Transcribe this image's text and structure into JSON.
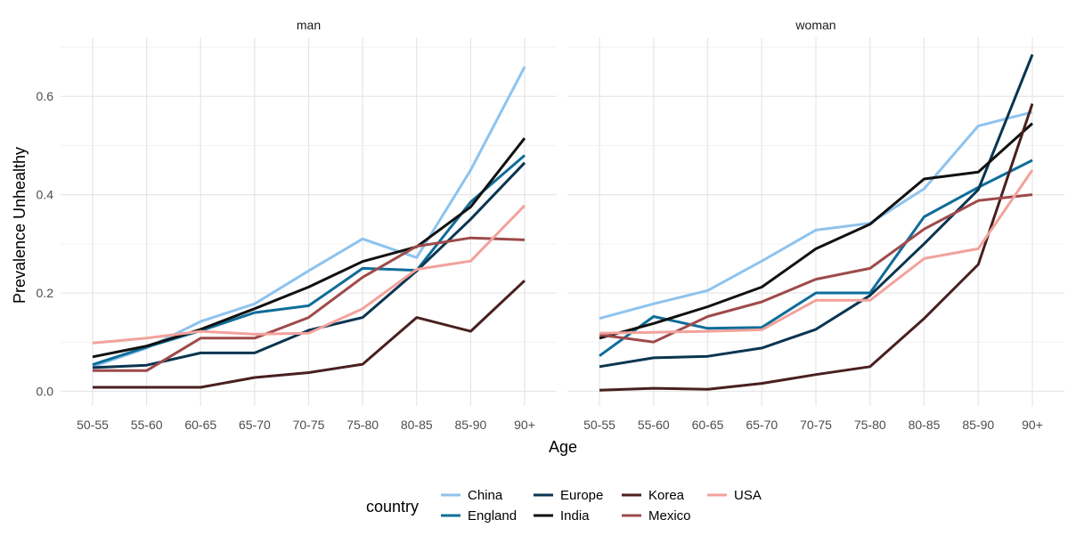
{
  "chart_data": {
    "type": "line",
    "facet_variable": "sex",
    "panels": [
      "man",
      "woman"
    ],
    "x": [
      "50-55",
      "55-60",
      "60-65",
      "65-70",
      "70-75",
      "75-80",
      "80-85",
      "85-90",
      "90+"
    ],
    "xlabel": "Age",
    "ylabel": "Prevalence Unhealthy",
    "ylim": [
      -0.03,
      0.72
    ],
    "yticks": [
      0.0,
      0.2,
      0.4,
      0.6
    ],
    "ytick_labels": [
      "0.0",
      "0.2",
      "0.4",
      "0.6"
    ],
    "grid": true,
    "legend": {
      "title": "country",
      "position": "bottom",
      "entries": [
        "China",
        "England",
        "Europe",
        "India",
        "Korea",
        "Mexico",
        "USA"
      ]
    },
    "series": [
      {
        "name": "China",
        "color": "#8ec3ee",
        "values": {
          "man": [
            0.05,
            0.088,
            0.142,
            0.178,
            0.245,
            0.31,
            0.272,
            0.45,
            0.66
          ],
          "woman": [
            0.148,
            0.178,
            0.205,
            0.265,
            0.328,
            0.342,
            0.412,
            0.54,
            0.568
          ]
        }
      },
      {
        "name": "England",
        "color": "#0f6d99",
        "values": {
          "man": [
            0.054,
            0.09,
            0.123,
            0.16,
            0.174,
            0.25,
            0.246,
            0.385,
            0.48
          ],
          "woman": [
            0.072,
            0.152,
            0.128,
            0.13,
            0.2,
            0.2,
            0.355,
            0.415,
            0.47
          ]
        }
      },
      {
        "name": "Europe",
        "color": "#0a3550",
        "values": {
          "man": [
            0.048,
            0.053,
            0.078,
            0.078,
            0.124,
            0.15,
            0.245,
            0.35,
            0.465
          ],
          "woman": [
            0.05,
            0.068,
            0.071,
            0.088,
            0.126,
            0.195,
            0.3,
            0.41,
            0.685
          ]
        }
      },
      {
        "name": "India",
        "color": "#111111",
        "values": {
          "man": [
            0.07,
            0.092,
            0.126,
            0.168,
            0.212,
            0.264,
            0.294,
            0.375,
            0.515
          ],
          "woman": [
            0.108,
            0.138,
            0.172,
            0.212,
            0.29,
            0.34,
            0.432,
            0.446,
            0.545
          ]
        }
      },
      {
        "name": "Korea",
        "color": "#4a1f1f",
        "values": {
          "man": [
            0.008,
            0.008,
            0.008,
            0.028,
            0.038,
            0.055,
            0.15,
            0.122,
            0.225
          ],
          "woman": [
            0.002,
            0.006,
            0.004,
            0.016,
            0.034,
            0.05,
            0.148,
            0.258,
            0.585
          ]
        }
      },
      {
        "name": "Mexico",
        "color": "#9e4a4a",
        "values": {
          "man": [
            0.042,
            0.042,
            0.108,
            0.108,
            0.15,
            0.232,
            0.295,
            0.312,
            0.308
          ],
          "woman": [
            0.115,
            0.1,
            0.152,
            0.182,
            0.228,
            0.25,
            0.33,
            0.388,
            0.4
          ]
        }
      },
      {
        "name": "USA",
        "color": "#f2a29c",
        "values": {
          "man": [
            0.098,
            0.108,
            0.122,
            0.116,
            0.118,
            0.168,
            0.248,
            0.265,
            0.378
          ],
          "woman": [
            0.118,
            0.12,
            0.122,
            0.125,
            0.185,
            0.185,
            0.27,
            0.29,
            0.45
          ]
        }
      }
    ]
  }
}
